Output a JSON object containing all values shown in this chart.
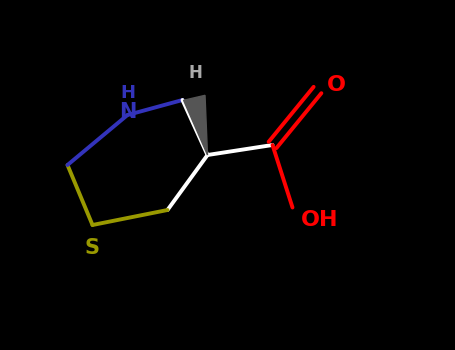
{
  "background_color": "#000000",
  "N_color": "#3333bb",
  "S_color": "#999900",
  "O_color": "#ff0000",
  "bond_color": "#ffffff",
  "bond_width": 2.8,
  "figsize": [
    4.55,
    3.5
  ],
  "dpi": 100,
  "NH_H": "H",
  "NH_N": "N",
  "S_label": "S",
  "O_label": "O",
  "OH_label": "OH",
  "H_label": "H",
  "wedge_color": "#555555"
}
